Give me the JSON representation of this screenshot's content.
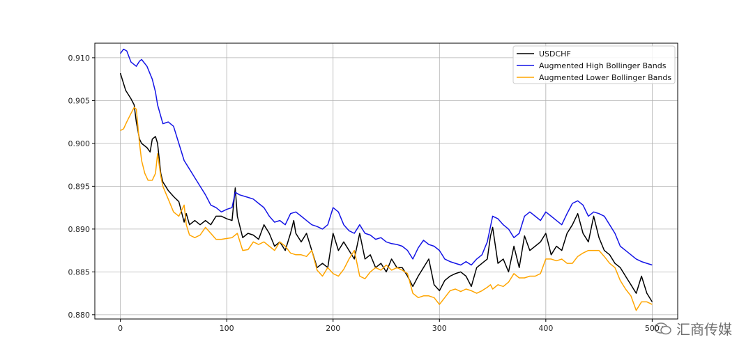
{
  "chart_data": {
    "type": "line",
    "title": "",
    "xlabel": "",
    "ylabel": "",
    "xlim": [
      -24,
      524
    ],
    "ylim": [
      0.8795,
      0.9117
    ],
    "x_ticks": [
      0,
      100,
      200,
      300,
      400,
      500
    ],
    "x_tick_labels": [
      "0",
      "100",
      "200",
      "300",
      "400",
      "500"
    ],
    "y_ticks": [
      0.88,
      0.885,
      0.89,
      0.895,
      0.9,
      0.905,
      0.91
    ],
    "y_tick_labels": [
      "0.880",
      "0.885",
      "0.890",
      "0.895",
      "0.900",
      "0.905",
      "0.910"
    ],
    "grid": true,
    "legend_position": "top-right",
    "series": [
      {
        "name": "USDCHF",
        "color": "#000000",
        "x": [
          0,
          5,
          10,
          13,
          15,
          18,
          20,
          25,
          28,
          30,
          33,
          35,
          38,
          40,
          45,
          50,
          55,
          60,
          62,
          65,
          70,
          75,
          80,
          85,
          90,
          95,
          100,
          105,
          108,
          110,
          115,
          120,
          125,
          130,
          135,
          140,
          145,
          150,
          155,
          160,
          163,
          165,
          170,
          175,
          180,
          185,
          190,
          195,
          200,
          205,
          210,
          215,
          220,
          225,
          230,
          235,
          240,
          245,
          250,
          255,
          260,
          265,
          270,
          275,
          280,
          285,
          290,
          295,
          300,
          305,
          310,
          315,
          320,
          325,
          330,
          335,
          340,
          345,
          348,
          350,
          355,
          360,
          365,
          370,
          375,
          380,
          385,
          390,
          395,
          400,
          405,
          410,
          415,
          420,
          425,
          430,
          435,
          440,
          445,
          450,
          455,
          460,
          465,
          470,
          475,
          480,
          485,
          490,
          495,
          500
        ],
        "y": [
          0.9082,
          0.9062,
          0.9052,
          0.9045,
          0.9025,
          0.9005,
          0.9,
          0.8995,
          0.899,
          0.9005,
          0.9008,
          0.9,
          0.8965,
          0.8955,
          0.8945,
          0.8938,
          0.8932,
          0.8908,
          0.8918,
          0.8905,
          0.891,
          0.8905,
          0.891,
          0.8905,
          0.8915,
          0.8915,
          0.8912,
          0.891,
          0.8948,
          0.8915,
          0.889,
          0.8895,
          0.8893,
          0.8888,
          0.8905,
          0.8895,
          0.888,
          0.8885,
          0.8875,
          0.8895,
          0.891,
          0.8895,
          0.8885,
          0.8895,
          0.8875,
          0.8855,
          0.886,
          0.8855,
          0.8895,
          0.8875,
          0.8885,
          0.8875,
          0.8865,
          0.8895,
          0.8865,
          0.887,
          0.8855,
          0.886,
          0.885,
          0.8865,
          0.8855,
          0.8855,
          0.8845,
          0.8833,
          0.8845,
          0.8855,
          0.8865,
          0.8835,
          0.8828,
          0.884,
          0.8845,
          0.8848,
          0.885,
          0.8845,
          0.8833,
          0.8855,
          0.886,
          0.8865,
          0.8892,
          0.8902,
          0.886,
          0.8865,
          0.885,
          0.888,
          0.8855,
          0.8892,
          0.8875,
          0.888,
          0.8885,
          0.8895,
          0.887,
          0.888,
          0.8875,
          0.8895,
          0.8905,
          0.8918,
          0.8895,
          0.8885,
          0.8915,
          0.889,
          0.8875,
          0.887,
          0.886,
          0.8855,
          0.8845,
          0.8835,
          0.8825,
          0.8845,
          0.8825,
          0.8815
        ]
      },
      {
        "name": "Augmented High Bollinger Bands",
        "color": "#1414e6",
        "x": [
          0,
          3,
          6,
          10,
          15,
          18,
          20,
          25,
          30,
          33,
          35,
          40,
          45,
          50,
          55,
          60,
          65,
          70,
          75,
          80,
          85,
          90,
          95,
          100,
          105,
          108,
          112,
          120,
          125,
          130,
          135,
          140,
          145,
          150,
          155,
          160,
          165,
          170,
          175,
          180,
          185,
          190,
          195,
          200,
          205,
          210,
          215,
          220,
          225,
          230,
          235,
          240,
          245,
          250,
          255,
          260,
          265,
          270,
          275,
          280,
          285,
          290,
          295,
          300,
          305,
          310,
          315,
          320,
          325,
          330,
          335,
          340,
          345,
          348,
          350,
          355,
          360,
          365,
          370,
          375,
          380,
          385,
          390,
          395,
          400,
          405,
          410,
          415,
          420,
          425,
          430,
          435,
          440,
          445,
          450,
          455,
          460,
          465,
          470,
          475,
          480,
          485,
          490,
          495,
          500
        ],
        "y": [
          0.9105,
          0.911,
          0.9108,
          0.9095,
          0.909,
          0.9096,
          0.9098,
          0.909,
          0.9075,
          0.906,
          0.9045,
          0.9023,
          0.9025,
          0.902,
          0.9,
          0.898,
          0.897,
          0.896,
          0.895,
          0.894,
          0.8928,
          0.8925,
          0.892,
          0.8923,
          0.8925,
          0.8943,
          0.894,
          0.8937,
          0.8935,
          0.893,
          0.8925,
          0.8915,
          0.8908,
          0.891,
          0.8905,
          0.8918,
          0.892,
          0.8915,
          0.891,
          0.8905,
          0.8903,
          0.89,
          0.8905,
          0.8925,
          0.892,
          0.8905,
          0.8898,
          0.8895,
          0.8905,
          0.8895,
          0.8893,
          0.8888,
          0.889,
          0.8885,
          0.8883,
          0.8882,
          0.888,
          0.8875,
          0.8865,
          0.8878,
          0.8887,
          0.8882,
          0.888,
          0.8875,
          0.8865,
          0.8862,
          0.886,
          0.8858,
          0.8862,
          0.8858,
          0.8865,
          0.887,
          0.8885,
          0.8903,
          0.8915,
          0.8912,
          0.8905,
          0.89,
          0.889,
          0.8895,
          0.8915,
          0.892,
          0.8915,
          0.891,
          0.892,
          0.8915,
          0.891,
          0.8905,
          0.8918,
          0.893,
          0.8933,
          0.8928,
          0.8915,
          0.892,
          0.8918,
          0.8915,
          0.8905,
          0.8895,
          0.888,
          0.8875,
          0.887,
          0.8865,
          0.8862,
          0.886,
          0.8858
        ]
      },
      {
        "name": "Augmented Lower Bollinger Bands",
        "color": "#ffa500",
        "x": [
          0,
          3,
          6,
          10,
          13,
          15,
          18,
          20,
          23,
          26,
          30,
          33,
          35,
          38,
          40,
          45,
          50,
          55,
          60,
          62,
          65,
          70,
          75,
          80,
          85,
          90,
          95,
          100,
          105,
          110,
          115,
          120,
          125,
          130,
          135,
          140,
          145,
          150,
          155,
          160,
          165,
          170,
          175,
          180,
          185,
          190,
          195,
          200,
          205,
          210,
          215,
          220,
          225,
          230,
          235,
          240,
          245,
          250,
          255,
          260,
          265,
          270,
          275,
          280,
          285,
          290,
          295,
          300,
          305,
          310,
          315,
          320,
          325,
          330,
          335,
          340,
          345,
          348,
          350,
          355,
          360,
          365,
          370,
          375,
          380,
          385,
          390,
          395,
          400,
          405,
          410,
          415,
          420,
          425,
          430,
          435,
          440,
          445,
          450,
          455,
          460,
          465,
          470,
          475,
          480,
          485,
          490,
          495,
          500
        ],
        "y": [
          0.9015,
          0.9017,
          0.9025,
          0.9035,
          0.9042,
          0.904,
          0.9,
          0.898,
          0.8965,
          0.8957,
          0.8957,
          0.8965,
          0.8988,
          0.8962,
          0.895,
          0.8935,
          0.892,
          0.8915,
          0.8928,
          0.8905,
          0.8893,
          0.889,
          0.8893,
          0.8902,
          0.8895,
          0.8888,
          0.8888,
          0.8889,
          0.889,
          0.8895,
          0.8875,
          0.8876,
          0.8885,
          0.8882,
          0.8885,
          0.888,
          0.8875,
          0.8885,
          0.888,
          0.8872,
          0.887,
          0.887,
          0.8868,
          0.8875,
          0.8852,
          0.8845,
          0.8855,
          0.8848,
          0.8845,
          0.8853,
          0.8865,
          0.8875,
          0.8845,
          0.8842,
          0.885,
          0.8855,
          0.8852,
          0.8858,
          0.8852,
          0.8855,
          0.8852,
          0.8848,
          0.8825,
          0.882,
          0.8822,
          0.8822,
          0.882,
          0.8812,
          0.882,
          0.8828,
          0.883,
          0.8827,
          0.883,
          0.8828,
          0.8825,
          0.8828,
          0.8832,
          0.8835,
          0.883,
          0.8835,
          0.8833,
          0.8838,
          0.8848,
          0.8843,
          0.8843,
          0.8845,
          0.8845,
          0.8848,
          0.8865,
          0.8865,
          0.8863,
          0.8865,
          0.886,
          0.886,
          0.8868,
          0.8872,
          0.8875,
          0.8875,
          0.8875,
          0.8868,
          0.886,
          0.8855,
          0.884,
          0.883,
          0.8822,
          0.8805,
          0.8815,
          0.8815,
          0.8812
        ]
      }
    ]
  },
  "watermark": {
    "text": "汇商传媒",
    "icon": "wechat-icon"
  }
}
